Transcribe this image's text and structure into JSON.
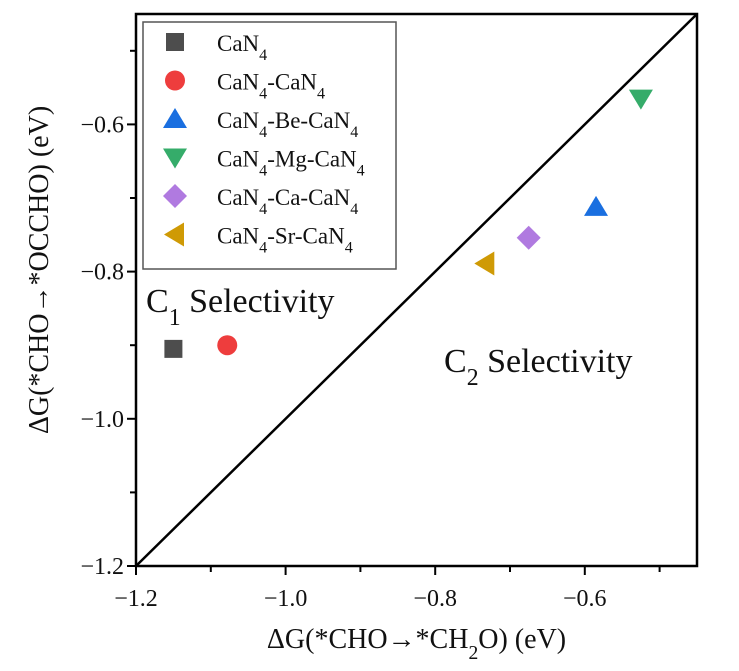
{
  "chart_data": {
    "type": "scatter",
    "xlabel": "ΔG(*CHO→*CH₂O) (eV)",
    "ylabel": "ΔG(*CHO→*OCCHO) (eV)",
    "xlim": [
      -1.2,
      -0.45
    ],
    "ylim": [
      -1.2,
      -0.45
    ],
    "xticks": [
      -1.2,
      -1.0,
      -0.8,
      -0.6
    ],
    "yticks": [
      -1.2,
      -1.0,
      -0.8,
      -0.6
    ],
    "xtick_labels": [
      "−1.2",
      "−1.0",
      "−0.8",
      "−0.6"
    ],
    "ytick_labels": [
      "−1.2",
      "−1.0",
      "−0.8",
      "−0.6"
    ],
    "grid": false,
    "legend_position": "top-left",
    "reference_line": {
      "type": "y=x",
      "color": "#000000"
    },
    "annotations": [
      {
        "text": "C",
        "sub": "1",
        "rest": " Selectivity",
        "region": "upper-left"
      },
      {
        "text": "C",
        "sub": "2",
        "rest": " Selectivity",
        "region": "lower-right"
      }
    ],
    "series": [
      {
        "name": "CaN4",
        "label_parts": [
          "CaN",
          "4",
          ""
        ],
        "marker": "square",
        "color": "#4d4d4d",
        "x": -1.15,
        "y": -0.905
      },
      {
        "name": "CaN4-CaN4",
        "label_parts": [
          "CaN",
          "4",
          "-CaN",
          "4",
          ""
        ],
        "marker": "circle",
        "color": "#ee3d3d",
        "x": -1.078,
        "y": -0.9
      },
      {
        "name": "CaN4-Be-CaN4",
        "label_parts": [
          "CaN",
          "4",
          "-Be-CaN",
          "4",
          ""
        ],
        "marker": "triangle-up",
        "color": "#1a6fe0",
        "x": -0.585,
        "y": -0.712
      },
      {
        "name": "CaN4-Mg-CaN4",
        "label_parts": [
          "CaN",
          "4",
          "-Mg-CaN",
          "4",
          ""
        ],
        "marker": "triangle-down",
        "color": "#35ac6a",
        "x": -0.525,
        "y": -0.565
      },
      {
        "name": "CaN4-Ca-CaN4",
        "label_parts": [
          "CaN",
          "4",
          "-Ca-CaN",
          "4",
          ""
        ],
        "marker": "diamond",
        "color": "#b07ae0",
        "x": -0.675,
        "y": -0.754
      },
      {
        "name": "CaN4-Sr-CaN4",
        "label_parts": [
          "CaN",
          "4",
          "-Sr-CaN",
          "4",
          ""
        ],
        "marker": "triangle-left",
        "color": "#cf9a05",
        "x": -0.733,
        "y": -0.789
      }
    ]
  }
}
